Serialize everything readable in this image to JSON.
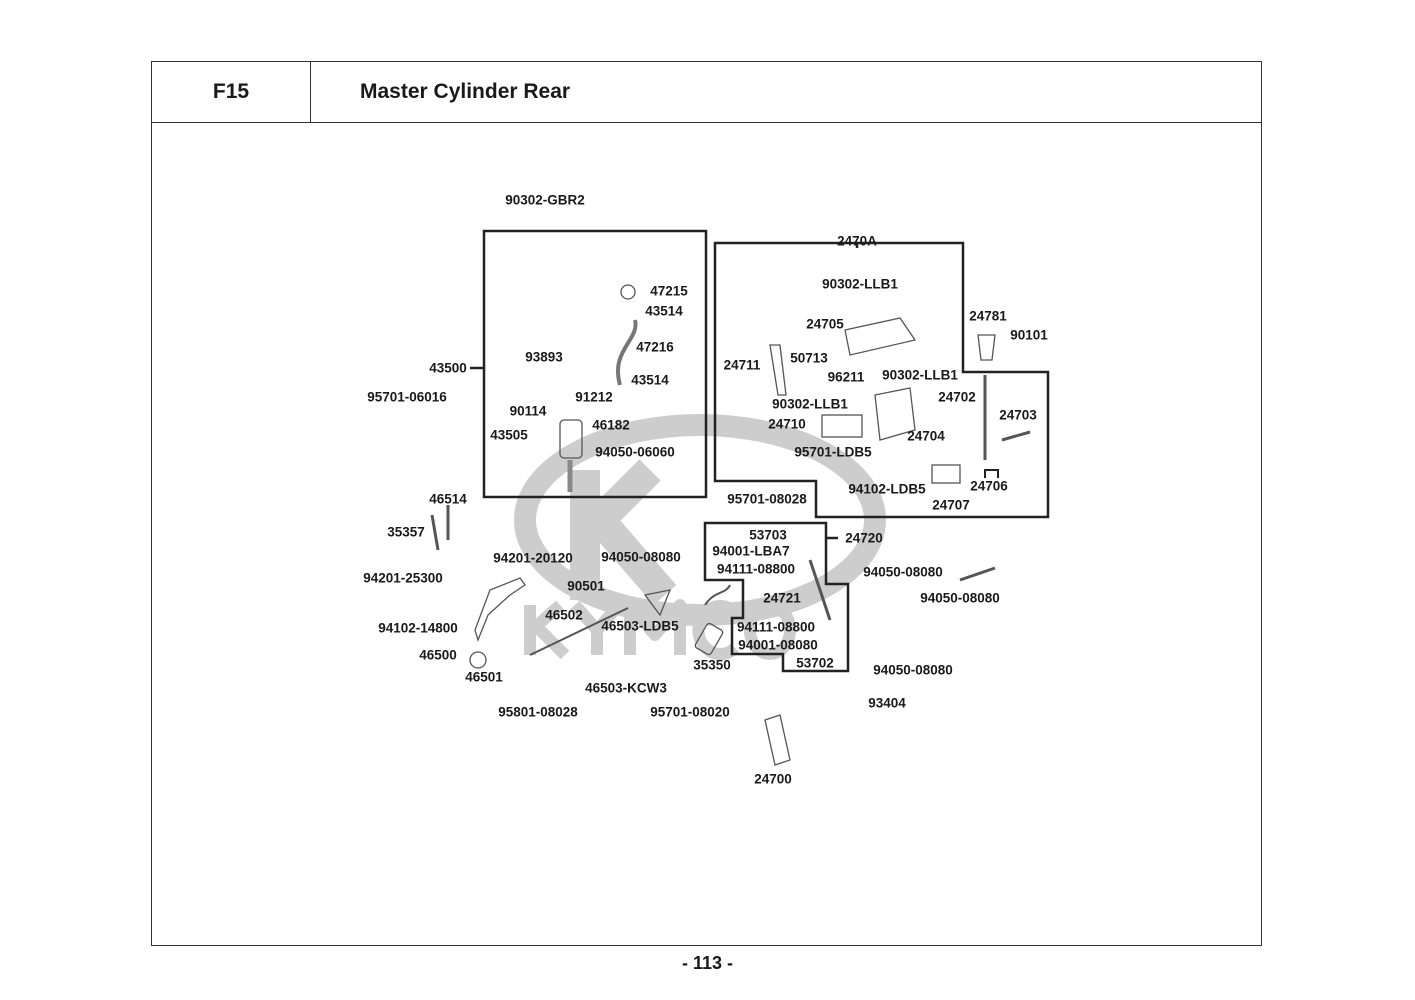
{
  "header": {
    "section_code": "F15",
    "title": "Master Cylinder Rear"
  },
  "footer": {
    "page_number": "- 113 -"
  },
  "watermark": {
    "text": "KYMCO",
    "color": "#c8c8c8"
  },
  "parts": [
    "90302-GBR2",
    "47215",
    "43514",
    "47216",
    "93893",
    "43514",
    "43500",
    "95701-06016",
    "91212",
    "90114",
    "46182",
    "43505",
    "94050-06060",
    "2470A",
    "90302-LLB1",
    "24705",
    "24781",
    "90101",
    "24711",
    "50713",
    "96211",
    "90302-LLB1",
    "24702",
    "90302-LLB1",
    "24703",
    "24710",
    "24704",
    "95701-LDB5",
    "24706",
    "94102-LDB5",
    "24707",
    "95701-08028",
    "46514",
    "35357",
    "53703",
    "24720",
    "94201-20120",
    "94050-08080",
    "94001-LBA7",
    "94111-08800",
    "94050-08080",
    "94201-25300",
    "90501",
    "94050-08080",
    "24721",
    "46502",
    "46503-LDB5",
    "94111-08800",
    "94102-14800",
    "94001-08080",
    "46500",
    "53702",
    "35350",
    "94050-08080",
    "46501",
    "46503-KCW3",
    "93404",
    "95801-08028",
    "95701-08020",
    "24700"
  ]
}
